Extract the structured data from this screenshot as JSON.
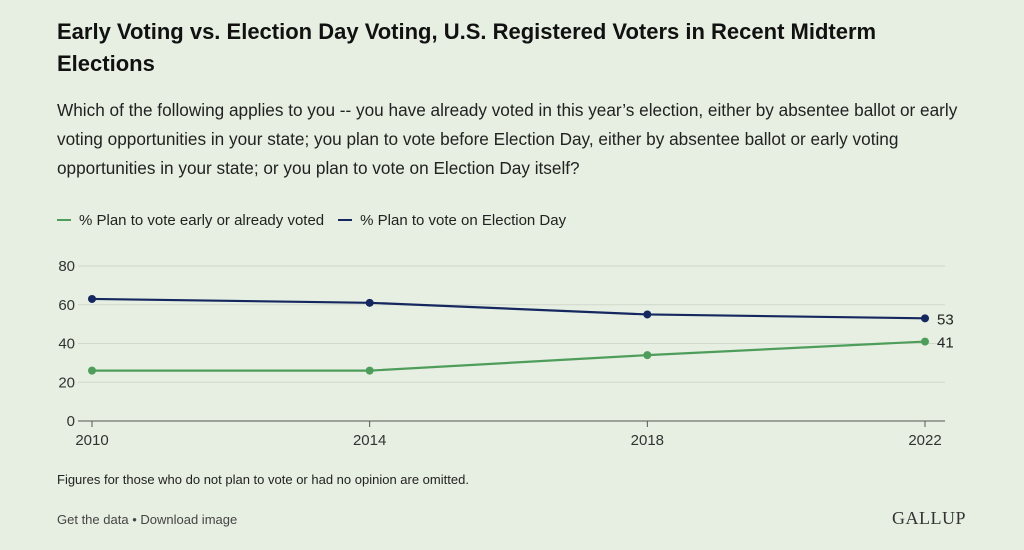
{
  "title": "Early Voting vs. Election Day Voting, U.S. Registered Voters in Recent Midterm Elections",
  "subtitle": "Which of the following applies to you -- you have already voted in this year’s election, either by absentee ballot or early voting opportunities in your state; you plan to vote before Election Day, either by absentee ballot or early voting opportunities in your state; or you plan to vote on Election Day itself?",
  "legend": [
    {
      "label": "% Plan to vote early or already voted",
      "color": "#4e9d5b"
    },
    {
      "label": "% Plan to vote on Election Day",
      "color": "#15275f"
    }
  ],
  "note": "Figures for those who do not plan to vote or had no opinion are omitted.",
  "footer": {
    "get_data": "Get the data",
    "separator": "•",
    "download": "Download image"
  },
  "brand": "GALLUP",
  "chart_data": {
    "type": "line",
    "x": [
      2010,
      2014,
      2018,
      2022
    ],
    "x_tick_labels": [
      "2010",
      "2014",
      "2018",
      "2022"
    ],
    "ylim": [
      0,
      80
    ],
    "y_ticks": [
      0,
      20,
      40,
      60,
      80
    ],
    "grid": true,
    "legend_position": "top-left",
    "series": [
      {
        "name": "% Plan to vote early or already voted",
        "color": "#4e9d5b",
        "values": [
          26,
          26,
          34,
          41
        ],
        "end_label": "41"
      },
      {
        "name": "% Plan to vote on Election Day",
        "color": "#15275f",
        "values": [
          63,
          61,
          55,
          53
        ],
        "end_label": "53"
      }
    ]
  }
}
